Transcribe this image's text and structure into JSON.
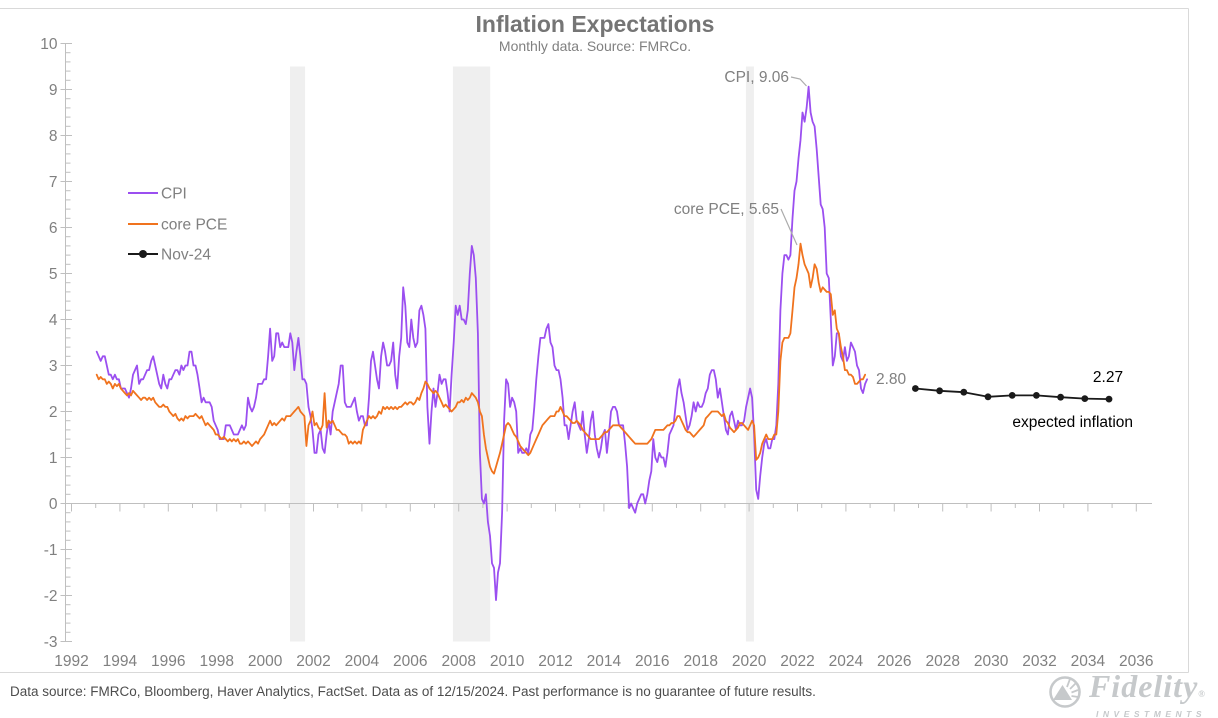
{
  "header": {
    "title": "Inflation Expectations",
    "subtitle": "Monthly data. Source: FMRCo."
  },
  "colors": {
    "cpi": "#9b4ff0",
    "cpi_light": "#c49bf5",
    "orange": "#f0731e",
    "black": "#1a1a1a",
    "axis_gray": "#bfbfbf",
    "label_gray": "#808080",
    "band_gray": "#efefef",
    "frame_gray": "#d9d9d9"
  },
  "legend": [
    {
      "label": "CPI",
      "color_key": "cpi"
    },
    {
      "label": "core PCE",
      "color_key": "orange"
    },
    {
      "label": "Nov-24",
      "color_key": "black"
    }
  ],
  "annotations": {
    "cpi_peak": "CPI, 9.06",
    "pce_peak": "core PCE, 5.65",
    "pce_last": "2.80",
    "expected_last": "2.27",
    "expected_label": "expected inflation"
  },
  "footer": {
    "disclaimer": "Data source: FMRCo, Bloomberg, Haver Analytics, FactSet. Data as of 12/15/2024. Past performance is no guarantee of future results.",
    "brand": "Fidelity",
    "brand_sub": "INVESTMENTS"
  },
  "chart_data": {
    "type": "line",
    "title": "Inflation Expectations",
    "subtitle": "Monthly data. Source: FMRCo.",
    "xlabel": "",
    "ylabel": "",
    "ylim": [
      -3,
      10
    ],
    "xlim": [
      1992,
      2037
    ],
    "grid": false,
    "legend_position": "upper-left",
    "y_ticks": [
      -3,
      -2,
      -1,
      0,
      1,
      2,
      3,
      4,
      5,
      6,
      7,
      8,
      9,
      10
    ],
    "x_ticks": [
      1992,
      1994,
      1996,
      1998,
      2000,
      2002,
      2004,
      2006,
      2008,
      2010,
      2012,
      2014,
      2016,
      2018,
      2020,
      2022,
      2024,
      2026,
      2028,
      2030,
      2032,
      2034,
      2036
    ],
    "recession_bands": [
      [
        2001.03,
        2001.65
      ],
      [
        2007.76,
        2009.3
      ],
      [
        2019.87,
        2020.2
      ]
    ],
    "series": [
      {
        "name": "CPI",
        "color_key": "cpi",
        "monthly": true,
        "start_year": 1993,
        "values": [
          3.3,
          3.2,
          3.1,
          3.2,
          3.2,
          3.0,
          2.8,
          2.8,
          2.7,
          2.8,
          2.7,
          2.7,
          2.5,
          2.5,
          2.5,
          2.4,
          2.3,
          2.5,
          2.8,
          2.9,
          3.0,
          2.6,
          2.7,
          2.7,
          2.8,
          2.9,
          2.9,
          3.1,
          3.2,
          3.0,
          2.8,
          2.6,
          2.5,
          2.8,
          2.6,
          2.5,
          2.7,
          2.7,
          2.8,
          2.9,
          2.9,
          2.8,
          3.0,
          2.9,
          3.0,
          3.0,
          3.3,
          3.3,
          3.0,
          3.0,
          2.8,
          2.5,
          2.2,
          2.3,
          2.2,
          2.2,
          2.2,
          2.1,
          1.8,
          1.7,
          1.6,
          1.4,
          1.4,
          1.4,
          1.7,
          1.7,
          1.7,
          1.6,
          1.5,
          1.5,
          1.5,
          1.6,
          1.7,
          1.6,
          1.7,
          2.3,
          2.1,
          2.0,
          2.1,
          2.3,
          2.6,
          2.6,
          2.6,
          2.7,
          2.7,
          3.2,
          3.8,
          3.1,
          3.2,
          3.7,
          3.7,
          3.4,
          3.5,
          3.4,
          3.4,
          3.4,
          3.7,
          3.5,
          2.9,
          3.3,
          3.6,
          3.2,
          2.7,
          2.7,
          2.6,
          2.1,
          1.9,
          1.6,
          1.1,
          1.1,
          1.5,
          1.6,
          1.2,
          1.1,
          1.5,
          1.8,
          1.5,
          2.0,
          2.2,
          2.4,
          2.6,
          3.0,
          3.0,
          2.2,
          2.1,
          2.1,
          2.1,
          2.2,
          2.3,
          2.0,
          1.8,
          1.9,
          1.9,
          1.7,
          1.7,
          2.3,
          3.1,
          3.3,
          3.0,
          2.7,
          2.5,
          3.2,
          3.5,
          3.3,
          3.0,
          3.0,
          3.1,
          3.5,
          2.8,
          2.5,
          3.2,
          3.6,
          4.7,
          4.3,
          3.5,
          3.4,
          4.0,
          3.6,
          3.4,
          3.5,
          4.2,
          4.3,
          4.1,
          3.8,
          2.1,
          1.3,
          2.0,
          2.5,
          2.1,
          2.4,
          2.8,
          2.6,
          2.7,
          2.7,
          2.4,
          2.0,
          2.8,
          3.5,
          4.3,
          4.1,
          4.3,
          4.0,
          4.0,
          3.9,
          4.2,
          5.0,
          5.6,
          5.4,
          4.9,
          3.7,
          1.1,
          0.1,
          0.0,
          0.2,
          -0.4,
          -0.7,
          -1.3,
          -1.4,
          -2.1,
          -1.5,
          -1.3,
          -0.2,
          1.8,
          2.7,
          2.6,
          2.1,
          2.3,
          2.2,
          2.0,
          1.1,
          1.2,
          1.1,
          1.1,
          1.2,
          1.1,
          1.5,
          1.6,
          2.1,
          2.7,
          3.2,
          3.6,
          3.6,
          3.6,
          3.8,
          3.9,
          3.5,
          3.4,
          3.0,
          2.9,
          2.9,
          2.7,
          2.3,
          1.7,
          1.7,
          1.4,
          1.7,
          2.0,
          2.2,
          1.8,
          1.7,
          1.6,
          2.0,
          1.5,
          1.1,
          1.4,
          1.8,
          2.0,
          1.5,
          1.2,
          1.0,
          1.2,
          1.5,
          1.6,
          1.1,
          1.5,
          2.0,
          2.1,
          2.1,
          2.0,
          1.7,
          1.7,
          1.7,
          1.3,
          0.8,
          -0.1,
          0.0,
          -0.1,
          -0.2,
          0.0,
          0.1,
          0.2,
          0.2,
          0.0,
          0.2,
          0.5,
          0.7,
          1.4,
          1.0,
          0.9,
          1.1,
          1.0,
          1.0,
          0.8,
          1.1,
          1.5,
          1.6,
          1.7,
          2.1,
          2.5,
          2.7,
          2.4,
          2.2,
          1.9,
          1.6,
          1.7,
          1.9,
          2.2,
          2.0,
          2.2,
          2.1,
          2.1,
          2.2,
          2.4,
          2.5,
          2.8,
          2.9,
          2.9,
          2.7,
          2.3,
          2.5,
          2.2,
          1.9,
          1.6,
          1.5,
          1.9,
          2.0,
          1.8,
          1.6,
          1.8,
          1.7,
          1.7,
          1.8,
          2.1,
          2.3,
          2.5,
          2.3,
          1.5,
          0.3,
          0.1,
          0.6,
          1.0,
          1.3,
          1.4,
          1.2,
          1.2,
          1.4,
          1.4,
          1.7,
          2.6,
          4.2,
          5.0,
          5.4,
          5.4,
          5.3,
          5.4,
          6.2,
          6.8,
          7.0,
          7.5,
          7.9,
          8.5,
          8.3,
          8.6,
          9.06,
          8.5,
          8.3,
          8.2,
          7.7,
          7.1,
          6.5,
          6.4,
          6.0,
          5.0,
          4.9,
          4.0,
          3.0,
          3.2,
          3.7,
          3.7,
          3.2,
          3.1,
          3.4,
          3.1,
          3.2,
          3.5,
          3.4,
          3.3,
          3.0,
          2.9,
          2.5,
          2.4,
          2.6,
          2.7
        ]
      },
      {
        "name": "core PCE",
        "color_key": "orange",
        "monthly": true,
        "start_year": 1993,
        "values": [
          2.8,
          2.7,
          2.75,
          2.7,
          2.7,
          2.6,
          2.65,
          2.6,
          2.5,
          2.6,
          2.55,
          2.6,
          2.5,
          2.45,
          2.4,
          2.35,
          2.4,
          2.35,
          2.45,
          2.4,
          2.35,
          2.3,
          2.25,
          2.3,
          2.3,
          2.25,
          2.3,
          2.25,
          2.3,
          2.2,
          2.15,
          2.1,
          2.1,
          2.15,
          2.1,
          2.1,
          2.0,
          1.95,
          1.9,
          1.95,
          1.85,
          1.8,
          1.85,
          1.8,
          1.9,
          1.85,
          1.9,
          1.9,
          1.9,
          1.95,
          1.9,
          1.85,
          1.9,
          1.8,
          1.7,
          1.75,
          1.7,
          1.65,
          1.6,
          1.5,
          1.5,
          1.45,
          1.4,
          1.45,
          1.4,
          1.35,
          1.4,
          1.35,
          1.4,
          1.35,
          1.4,
          1.3,
          1.3,
          1.35,
          1.3,
          1.35,
          1.3,
          1.25,
          1.3,
          1.35,
          1.3,
          1.4,
          1.45,
          1.5,
          1.6,
          1.7,
          1.8,
          1.7,
          1.75,
          1.7,
          1.75,
          1.8,
          1.85,
          1.8,
          1.9,
          1.9,
          1.9,
          1.95,
          2.0,
          2.05,
          2.1,
          2.0,
          1.95,
          1.9,
          1.25,
          1.7,
          1.8,
          2.0,
          1.7,
          1.75,
          1.65,
          1.6,
          1.7,
          2.4,
          1.65,
          1.8,
          1.75,
          1.8,
          1.7,
          1.6,
          1.6,
          1.55,
          1.5,
          1.5,
          1.45,
          1.3,
          1.35,
          1.3,
          1.35,
          1.3,
          1.35,
          1.3,
          1.6,
          1.7,
          1.8,
          1.9,
          1.85,
          1.9,
          1.85,
          1.9,
          2.0,
          1.95,
          2.1,
          2.05,
          2.1,
          2.05,
          2.1,
          2.05,
          2.1,
          2.05,
          2.1,
          2.1,
          2.15,
          2.2,
          2.15,
          2.2,
          2.2,
          2.15,
          2.2,
          2.3,
          2.25,
          2.4,
          2.5,
          2.65,
          2.6,
          2.5,
          2.45,
          2.4,
          2.45,
          2.4,
          2.3,
          2.2,
          2.1,
          2.15,
          2.1,
          2.05,
          2.0,
          2.05,
          2.1,
          2.2,
          2.2,
          2.25,
          2.2,
          2.3,
          2.25,
          2.3,
          2.4,
          2.35,
          2.3,
          2.2,
          2.0,
          1.9,
          1.5,
          1.2,
          1.0,
          0.8,
          0.7,
          0.65,
          0.8,
          0.95,
          1.1,
          1.3,
          1.5,
          1.7,
          1.75,
          1.7,
          1.6,
          1.5,
          1.45,
          1.35,
          1.25,
          1.2,
          1.15,
          1.1,
          1.05,
          1.1,
          1.2,
          1.3,
          1.4,
          1.5,
          1.6,
          1.7,
          1.75,
          1.8,
          1.85,
          1.9,
          1.9,
          1.9,
          2.0,
          2.0,
          2.1,
          2.0,
          1.9,
          1.9,
          1.85,
          1.8,
          1.75,
          1.75,
          1.8,
          1.75,
          1.7,
          1.6,
          1.55,
          1.5,
          1.45,
          1.4,
          1.4,
          1.4,
          1.4,
          1.4,
          1.45,
          1.5,
          1.55,
          1.55,
          1.6,
          1.65,
          1.7,
          1.7,
          1.7,
          1.7,
          1.65,
          1.6,
          1.55,
          1.5,
          1.45,
          1.4,
          1.35,
          1.3,
          1.3,
          1.3,
          1.3,
          1.3,
          1.3,
          1.3,
          1.35,
          1.4,
          1.5,
          1.6,
          1.6,
          1.6,
          1.6,
          1.6,
          1.65,
          1.7,
          1.7,
          1.75,
          1.75,
          1.8,
          1.9,
          1.9,
          1.8,
          1.7,
          1.6,
          1.55,
          1.55,
          1.5,
          1.45,
          1.5,
          1.55,
          1.6,
          1.65,
          1.7,
          1.85,
          1.9,
          1.95,
          2.0,
          2.0,
          2.0,
          2.0,
          1.95,
          1.9,
          1.95,
          1.8,
          1.75,
          1.65,
          1.6,
          1.55,
          1.6,
          1.65,
          1.75,
          1.75,
          1.7,
          1.65,
          1.6,
          1.7,
          1.8,
          1.7,
          0.95,
          1.0,
          1.1,
          1.3,
          1.4,
          1.5,
          1.4,
          1.4,
          1.4,
          1.5,
          1.5,
          2.0,
          3.1,
          3.5,
          3.6,
          3.6,
          3.6,
          3.7,
          4.2,
          4.7,
          4.9,
          5.2,
          5.65,
          5.4,
          5.2,
          5.1,
          5.0,
          4.7,
          4.9,
          5.2,
          5.1,
          4.8,
          4.6,
          4.7,
          4.65,
          4.6,
          4.6,
          4.55,
          4.1,
          4.2,
          3.8,
          3.7,
          3.4,
          3.2,
          2.9,
          2.9,
          2.8,
          2.8,
          2.75,
          2.6,
          2.6,
          2.65,
          2.7,
          2.7,
          2.8
        ]
      },
      {
        "name": "Nov-24",
        "color_key": "black",
        "marker": true,
        "x": [
          2026.87,
          2027.87,
          2028.87,
          2029.87,
          2030.87,
          2031.87,
          2032.87,
          2033.87,
          2034.87
        ],
        "values": [
          2.5,
          2.45,
          2.42,
          2.32,
          2.35,
          2.35,
          2.31,
          2.28,
          2.27
        ]
      }
    ]
  }
}
